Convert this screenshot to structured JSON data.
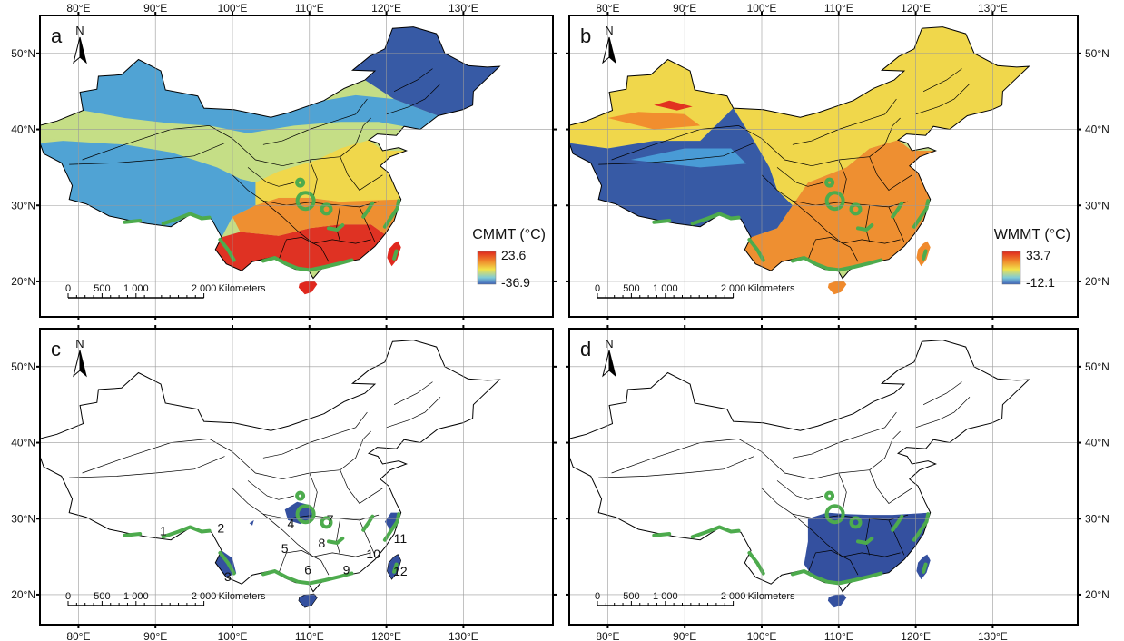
{
  "panels": [
    {
      "letter": "a",
      "mode": "cmmt",
      "legend": {
        "title": "CMMT (°C)",
        "max": "23.6",
        "min": "-36.9"
      }
    },
    {
      "letter": "b",
      "mode": "wmmt",
      "legend": {
        "title": "WMMT (°C)",
        "max": "33.7",
        "min": "-12.1"
      }
    },
    {
      "letter": "c",
      "mode": "regions",
      "legend": null
    },
    {
      "letter": "d",
      "mode": "suitable",
      "legend": null
    }
  ],
  "north_label": "N",
  "longitude_ticks": [
    "80°E",
    "90°E",
    "100°E",
    "110°E",
    "120°E",
    "130°E"
  ],
  "latitude_ticks": [
    "20°N",
    "30°N",
    "40°N",
    "50°N"
  ],
  "scale_bar": {
    "labels": [
      "0",
      "500",
      "1 000",
      "2 000"
    ],
    "unit": "Kilometers"
  },
  "region_numbers": [
    "1",
    "2",
    "3",
    "4",
    "5",
    "6",
    "7",
    "8",
    "9",
    "10",
    "11",
    "12"
  ],
  "colors": {
    "cold": "#2f52a6",
    "cool": "#4a9fd8",
    "mild": "#c5dd86",
    "warm_yellow": "#f2d648",
    "warm": "#f08a2c",
    "hot": "#e0281e",
    "green_outline": "#4dab4d",
    "blue_fill": "#34509f",
    "frame": "#000000"
  }
}
